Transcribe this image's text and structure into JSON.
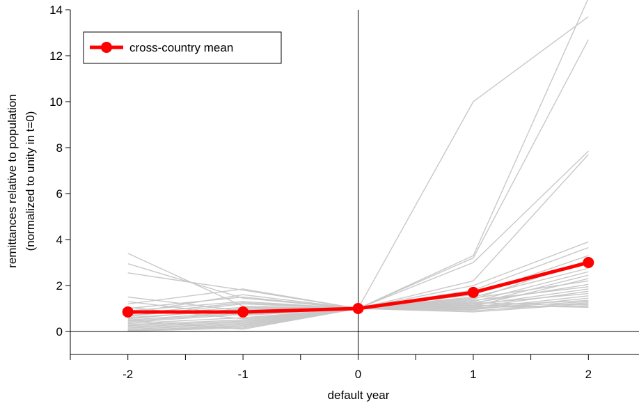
{
  "chart_data": {
    "type": "line",
    "xlabel": "default year",
    "ylabel_line1": "remittances relative to population",
    "ylabel_line2": "(normalized to unity in t=0)",
    "x": [
      -2,
      -1,
      0,
      1,
      2
    ],
    "xlim": [
      -2.5,
      2.5
    ],
    "ylim": [
      -1,
      14
    ],
    "xticks": [
      -2,
      -1,
      0,
      1,
      2
    ],
    "yticks": [
      0,
      2,
      4,
      6,
      8,
      10,
      12,
      14
    ],
    "reference_lines": {
      "x": 0,
      "y": 0
    },
    "grid": false,
    "legend_position": "top-left",
    "mean_series": {
      "name": "cross-country mean",
      "color": "#ff0000",
      "values": [
        0.85,
        0.85,
        1.0,
        1.7,
        3.0
      ]
    },
    "country_series_color": "#c8c8c8",
    "country_series": [
      [
        3.4,
        1.1,
        1.0,
        3.3,
        14.5
      ],
      [
        2.95,
        1.45,
        1.0,
        10.0,
        13.7
      ],
      [
        2.55,
        1.8,
        1.0,
        3.2,
        12.7
      ],
      [
        1.5,
        0.9,
        1.0,
        3.0,
        7.85
      ],
      [
        1.3,
        0.7,
        1.0,
        2.2,
        7.7
      ],
      [
        1.2,
        1.85,
        1.0,
        2.0,
        3.9
      ],
      [
        1.0,
        1.5,
        1.0,
        1.8,
        3.65
      ],
      [
        0.9,
        1.3,
        1.0,
        1.6,
        3.3
      ],
      [
        0.75,
        1.25,
        1.0,
        1.4,
        3.1
      ],
      [
        0.7,
        1.05,
        1.0,
        1.5,
        2.75
      ],
      [
        0.6,
        0.95,
        1.0,
        1.3,
        2.6
      ],
      [
        0.5,
        0.85,
        1.0,
        1.2,
        2.45
      ],
      [
        0.45,
        0.8,
        1.0,
        1.1,
        2.3
      ],
      [
        0.4,
        0.75,
        1.0,
        1.45,
        2.2
      ],
      [
        0.35,
        0.6,
        1.0,
        1.25,
        2.05
      ],
      [
        0.3,
        0.5,
        1.0,
        1.35,
        1.95
      ],
      [
        0.25,
        0.45,
        1.0,
        1.15,
        1.85
      ],
      [
        0.2,
        0.4,
        1.0,
        1.05,
        1.75
      ],
      [
        0.15,
        0.35,
        1.0,
        1.2,
        1.65
      ],
      [
        0.1,
        0.3,
        1.0,
        1.0,
        1.55
      ],
      [
        0.05,
        0.25,
        1.0,
        0.95,
        1.45
      ],
      [
        0.05,
        0.2,
        1.0,
        1.1,
        1.35
      ],
      [
        0.02,
        0.15,
        1.0,
        1.0,
        1.3
      ],
      [
        0.5,
        0.1,
        1.0,
        0.9,
        1.25
      ],
      [
        0.8,
        1.6,
        1.0,
        0.85,
        1.2
      ],
      [
        0.65,
        1.2,
        1.0,
        1.25,
        1.15
      ],
      [
        0.55,
        1.0,
        1.0,
        1.05,
        1.1
      ],
      [
        1.05,
        0.55,
        1.0,
        1.15,
        1.05
      ]
    ]
  }
}
